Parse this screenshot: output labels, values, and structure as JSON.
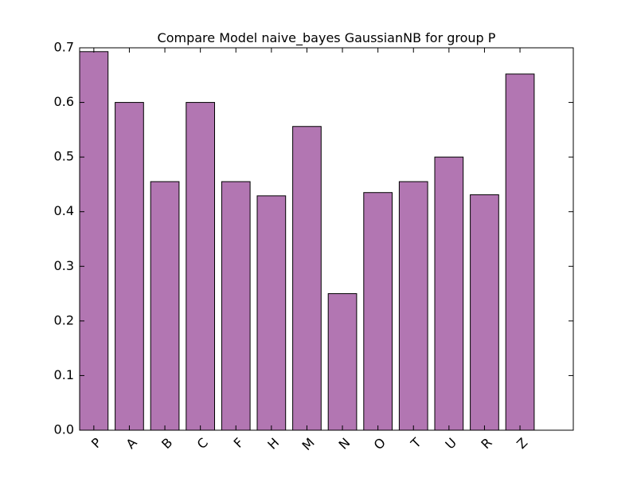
{
  "chart_data": {
    "type": "bar",
    "title": "Compare Model naive_bayes GaussianNB for group P",
    "xlabel": "",
    "ylabel": "",
    "categories": [
      "P",
      "A",
      "B",
      "C",
      "F",
      "H",
      "M",
      "N",
      "O",
      "T",
      "U",
      "R",
      "Z"
    ],
    "values": [
      0.693,
      0.6,
      0.455,
      0.6,
      0.455,
      0.429,
      0.556,
      0.25,
      0.435,
      0.455,
      0.5,
      0.431,
      0.652
    ],
    "ylim": [
      0,
      0.7
    ],
    "yticks": [
      "0.0",
      "0.1",
      "0.2",
      "0.3",
      "0.4",
      "0.5",
      "0.6",
      "0.7"
    ],
    "grid": false,
    "legend": "none",
    "bar_color": "#b276b2",
    "edge_color": "#000000"
  }
}
